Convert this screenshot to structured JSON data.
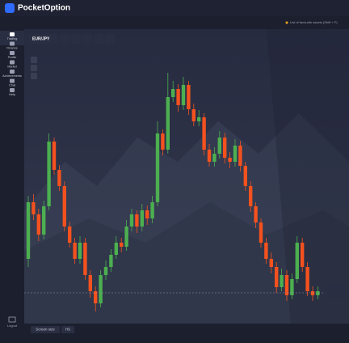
{
  "header": {
    "brand": "PocketOption",
    "favorites_hint": "List of favourite assets (Shift + F)"
  },
  "sidebar": {
    "items": [
      "Trading",
      "Finance",
      "Profile",
      "Market",
      "Achievements",
      "Chat",
      "Help"
    ],
    "logout": "Logout"
  },
  "toolbar": {
    "asset": "EUR/JPY"
  },
  "footer": {
    "screen_size": "Screen size",
    "mode": "HS"
  },
  "chart": {
    "type": "candlestick",
    "up_color": "#4caf50",
    "down_color": "#f4511e",
    "candles": [
      [
        80,
        150,
        158,
        70
      ],
      [
        150,
        135,
        160,
        128
      ],
      [
        135,
        110,
        142,
        102
      ],
      [
        110,
        145,
        152,
        104
      ],
      [
        145,
        225,
        235,
        140
      ],
      [
        225,
        190,
        230,
        184
      ],
      [
        190,
        170,
        196,
        164
      ],
      [
        170,
        120,
        176,
        114
      ],
      [
        120,
        100,
        126,
        94
      ],
      [
        100,
        80,
        106,
        74
      ],
      [
        80,
        100,
        108,
        74
      ],
      [
        100,
        60,
        106,
        54
      ],
      [
        60,
        40,
        66,
        32
      ],
      [
        40,
        25,
        46,
        15
      ],
      [
        25,
        60,
        66,
        20
      ],
      [
        60,
        70,
        78,
        54
      ],
      [
        70,
        85,
        92,
        64
      ],
      [
        85,
        100,
        108,
        80
      ],
      [
        100,
        95,
        106,
        88
      ],
      [
        95,
        120,
        128,
        90
      ],
      [
        120,
        135,
        142,
        114
      ],
      [
        135,
        120,
        140,
        112
      ],
      [
        120,
        140,
        148,
        114
      ],
      [
        140,
        130,
        146,
        122
      ],
      [
        130,
        150,
        158,
        124
      ],
      [
        150,
        235,
        250,
        145
      ],
      [
        235,
        215,
        240,
        208
      ],
      [
        215,
        280,
        310,
        210
      ],
      [
        280,
        290,
        300,
        274
      ],
      [
        290,
        270,
        296,
        262
      ],
      [
        270,
        295,
        305,
        264
      ],
      [
        295,
        265,
        300,
        258
      ],
      [
        265,
        250,
        272,
        244
      ],
      [
        250,
        255,
        264,
        244
      ],
      [
        255,
        215,
        260,
        208
      ],
      [
        215,
        200,
        222,
        194
      ],
      [
        200,
        210,
        218,
        194
      ],
      [
        210,
        230,
        238,
        204
      ],
      [
        230,
        205,
        236,
        198
      ],
      [
        205,
        200,
        212,
        192
      ],
      [
        200,
        220,
        228,
        194
      ],
      [
        220,
        195,
        226,
        188
      ],
      [
        195,
        170,
        200,
        164
      ],
      [
        170,
        145,
        176,
        138
      ],
      [
        145,
        125,
        150,
        118
      ],
      [
        125,
        100,
        130,
        94
      ],
      [
        100,
        80,
        106,
        74
      ],
      [
        80,
        70,
        88,
        62
      ],
      [
        70,
        45,
        76,
        38
      ],
      [
        45,
        60,
        68,
        40
      ],
      [
        60,
        35,
        66,
        28
      ],
      [
        35,
        55,
        62,
        30
      ],
      [
        55,
        100,
        108,
        50
      ],
      [
        100,
        70,
        106,
        64
      ],
      [
        70,
        40,
        76,
        34
      ],
      [
        40,
        35,
        46,
        28
      ],
      [
        35,
        40,
        46,
        30
      ]
    ]
  }
}
